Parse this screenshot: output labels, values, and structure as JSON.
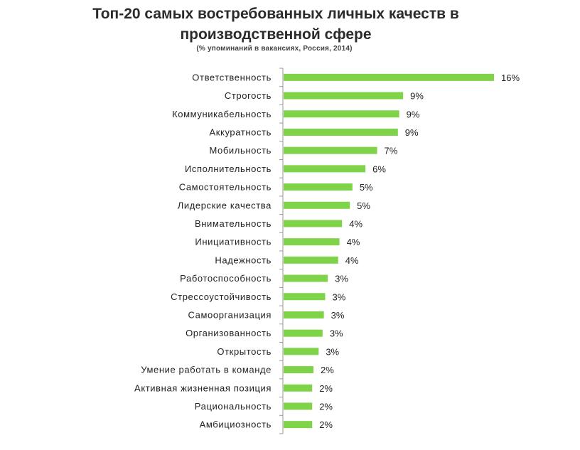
{
  "chart_data": {
    "type": "bar",
    "orientation": "horizontal",
    "title_line1": "Топ-20 самых востребованных личных качеств в",
    "title_line2": "производственной сфере",
    "subtitle": "(% упоминаний в вакансиях, Россия, 2014)",
    "categories": [
      "Ответственность",
      "Строгость",
      "Коммуникабельность",
      "Аккуратность",
      "Мобильность",
      "Исполнительность",
      "Самостоятельность",
      "Лидерские качества",
      "Внимательность",
      "Инициативность",
      "Надежность",
      "Работоспособность",
      "Стрессоустойчивость",
      "Самоорганизация",
      "Организованность",
      "Открытость",
      "Умение работать в команде",
      "Активная жизненная позиция",
      "Рациональность",
      "Амбициозность"
    ],
    "values": [
      16.2,
      9.2,
      8.9,
      8.8,
      7.2,
      6.3,
      5.3,
      5.1,
      4.5,
      4.3,
      4.2,
      3.4,
      3.2,
      3.1,
      3.0,
      2.7,
      2.3,
      2.2,
      2.2,
      2.2
    ],
    "value_labels": [
      "16%",
      "9%",
      "9%",
      "9%",
      "7%",
      "6%",
      "5%",
      "5%",
      "4%",
      "4%",
      "4%",
      "3%",
      "3%",
      "3%",
      "3%",
      "3%",
      "2%",
      "2%",
      "2%",
      "2%"
    ],
    "xlim": [
      0,
      16.2
    ],
    "bar_color": "#7ed348",
    "axis_color": "#999999",
    "grid": false,
    "legend": "none"
  }
}
